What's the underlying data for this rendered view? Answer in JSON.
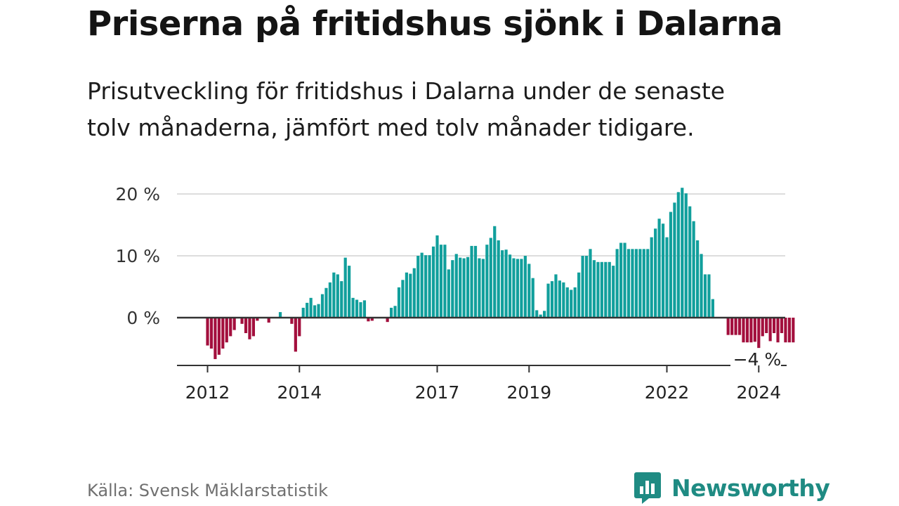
{
  "header": {
    "title": "Priserna på fritidshus sjönk i Dalarna",
    "subtitle": "Prisutveckling för fritidshus i Dalarna under de senaste tolv månaderna, jämfört med tolv månader tidigare."
  },
  "footer": {
    "source": "Källa: Svensk Mäklarstatistik",
    "brand": "Newsworthy"
  },
  "colors": {
    "positive": "#119f9c",
    "negative": "#a30f3d",
    "grid": "#dddddd",
    "axis": "#333333",
    "brand": "#1f8b83"
  },
  "chart_data": {
    "type": "bar",
    "title": "Priserna på fritidshus sjönk i Dalarna",
    "subtitle": "Prisutveckling för fritidshus i Dalarna under de senaste tolv månaderna, jämfört med tolv månader tidigare.",
    "xlabel": "",
    "ylabel": "",
    "ylim": [
      -7.5,
      21
    ],
    "grid": true,
    "y_ticks": [
      {
        "value": 0,
        "label": "0 %"
      },
      {
        "value": 10,
        "label": "10 %"
      },
      {
        "value": 20,
        "label": "20 %"
      }
    ],
    "x_ticks": [
      {
        "index": 0,
        "label": "2012"
      },
      {
        "index": 24,
        "label": "2014"
      },
      {
        "index": 60,
        "label": "2017"
      },
      {
        "index": 84,
        "label": "2019"
      },
      {
        "index": 120,
        "label": "2022"
      },
      {
        "index": 144,
        "label": "2024"
      }
    ],
    "frequency": "monthly",
    "start": "2011-12",
    "last_value_label": "−4 %",
    "values": [
      -4.5,
      -5,
      -6.7,
      -6,
      -5,
      -4,
      -3,
      -2,
      0,
      -1,
      -2.5,
      -3.5,
      -3,
      -0.5,
      0,
      0,
      -0.8,
      0,
      0,
      0.9,
      0,
      0,
      -1,
      -5.5,
      -3,
      1.6,
      2.4,
      3.2,
      2,
      2.2,
      3.8,
      4.8,
      5.7,
      7.3,
      7,
      5.9,
      9.7,
      8.4,
      3.2,
      2.9,
      2.5,
      2.8,
      -0.6,
      -0.5,
      0,
      0,
      0,
      -0.7,
      1.6,
      1.9,
      4.9,
      6.1,
      7.3,
      7.1,
      8,
      10,
      10.5,
      10.1,
      10.1,
      11.5,
      13.3,
      11.8,
      11.8,
      7.8,
      9.3,
      10.3,
      9.7,
      9.6,
      9.8,
      11.6,
      11.6,
      9.6,
      9.5,
      11.8,
      12.9,
      14.8,
      12.5,
      10.9,
      11,
      10.2,
      9.6,
      9.5,
      9.5,
      10,
      8.7,
      6.4,
      1.2,
      0.5,
      1.1,
      5.5,
      5.9,
      7,
      6,
      5.7,
      4.9,
      4.5,
      4.9,
      7.3,
      10,
      10,
      11.1,
      9.3,
      9,
      9,
      9,
      9,
      8.4,
      11.1,
      12.1,
      12.1,
      11.1,
      11.1,
      11.1,
      11.1,
      11.1,
      11.1,
      13,
      14.4,
      16,
      15.2,
      13,
      17.1,
      18.6,
      20.3,
      21,
      20.1,
      18,
      15.6,
      12.5,
      10.3,
      7,
      7,
      3,
      0,
      0,
      0,
      -2.8,
      -2.8,
      -2.8,
      -2.8,
      -4,
      -4,
      -4,
      -3.9,
      -4.9,
      -3,
      -2.5,
      -3.8,
      -2.5,
      -4,
      -2.5,
      -4,
      -4,
      -4
    ]
  }
}
